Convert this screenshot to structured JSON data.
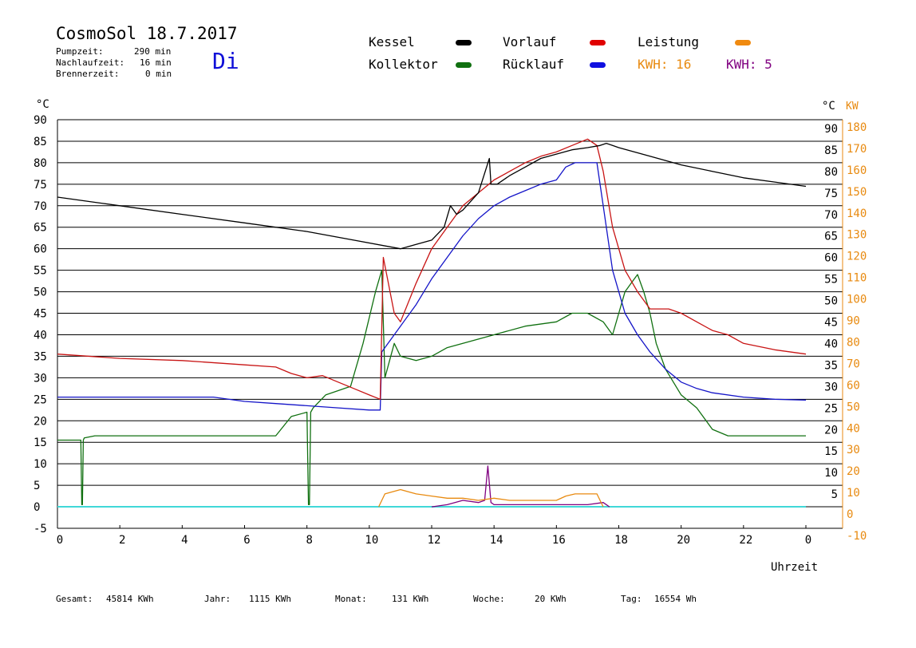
{
  "header": {
    "title": "CosmoSol 18.7.2017",
    "day": "Di",
    "pump_label": "Pumpzeit:",
    "pump_value": "290 min",
    "nachlauf_label": "Nachlaufzeit:",
    "nachlauf_value": "16 min",
    "brenner_label": "Brennerzeit:",
    "brenner_value": "0 min"
  },
  "legend": {
    "kessel": "Kessel",
    "kollektor": "Kollektor",
    "vorlauf": "Vorlauf",
    "ruecklauf": "Rücklauf",
    "leistung": "Leistung",
    "kwh1": "KWH: 16",
    "kwh2": "KWH: 5"
  },
  "colors": {
    "kessel": "#000000",
    "kollektor": "#107010",
    "vorlauf": "#c81414",
    "ruecklauf": "#1414c8",
    "leistung": "#e88a10",
    "kwh2": "#800080",
    "baseline": "#40d8d8"
  },
  "footer": {
    "gesamt_label": "Gesamt:",
    "gesamt_value": "45814 KWh",
    "jahr_label": "Jahr:",
    "jahr_value": "1115 KWh",
    "monat_label": "Monat:",
    "monat_value": "131 KWh",
    "woche_label": "Woche:",
    "woche_value": "20 KWh",
    "tag_label": "Tag:",
    "tag_value": "16554 Wh"
  },
  "chart_data": {
    "type": "line",
    "xlabel": "Uhrzeit",
    "ylabel_left": "°C",
    "ylabel_right": "°C",
    "ylabel_right2": "KW",
    "xlim": [
      0,
      24
    ],
    "ylim": [
      -5,
      90
    ],
    "x_ticks": [
      "0",
      "2",
      "4",
      "6",
      "8",
      "10",
      "12",
      "14",
      "16",
      "18",
      "20",
      "22",
      "0"
    ],
    "y_ticks_left": [
      "90",
      "85",
      "80",
      "75",
      "70",
      "65",
      "60",
      "55",
      "50",
      "45",
      "40",
      "35",
      "30",
      "25",
      "20",
      "15",
      "10",
      "5",
      "0",
      "-5"
    ],
    "y_ticks_right": [
      "90",
      "85",
      "80",
      "75",
      "70",
      "65",
      "60",
      "55",
      "50",
      "45",
      "40",
      "35",
      "30",
      "25",
      "20",
      "15",
      "10",
      "5"
    ],
    "y_ticks_kw": [
      "180",
      "170",
      "160",
      "150",
      "140",
      "130",
      "120",
      "110",
      "100",
      "90",
      "80",
      "70",
      "60",
      "50",
      "40",
      "30",
      "20",
      "10",
      "0",
      "-10"
    ],
    "grid": true,
    "series": [
      {
        "name": "Kessel",
        "color": "#000000",
        "x": [
          0,
          2,
          4,
          6,
          8,
          9.5,
          11,
          11.5,
          12,
          12.4,
          12.6,
          12.8,
          13.0,
          13.5,
          13.85,
          13.9,
          14.1,
          14.5,
          15,
          15.5,
          16,
          16.5,
          17,
          17.4,
          17.6,
          17.8,
          18,
          19,
          20,
          21,
          22,
          23,
          24
        ],
        "y": [
          72,
          70,
          68,
          66,
          64,
          62,
          60,
          61,
          62,
          65,
          70,
          68,
          69,
          73,
          81,
          75,
          75,
          77,
          79,
          81,
          82,
          83,
          83.5,
          84,
          84.5,
          84,
          83.5,
          81.5,
          79.5,
          78,
          76.5,
          75.5,
          74.5
        ]
      },
      {
        "name": "Vorlauf",
        "color": "#c81414",
        "x": [
          0,
          2,
          4,
          6,
          7,
          7.5,
          8,
          8.5,
          9,
          9.5,
          10,
          10.35,
          10.45,
          10.8,
          11,
          11.5,
          12,
          12.5,
          13,
          13.5,
          14,
          14.5,
          15,
          15.5,
          16,
          16.5,
          17,
          17.3,
          17.5,
          17.8,
          18.2,
          18.6,
          19,
          19.3,
          19.6,
          20,
          20.5,
          21,
          21.5,
          22,
          23,
          24
        ],
        "y": [
          35.5,
          34.5,
          34,
          33,
          32.5,
          31,
          30,
          30.5,
          29,
          27.5,
          26,
          25,
          58,
          45,
          43,
          52,
          60,
          65,
          70,
          73,
          76,
          78,
          80,
          81.5,
          82.5,
          84,
          85.5,
          84,
          78,
          65,
          55,
          50,
          46,
          46,
          46,
          45,
          43,
          41,
          40,
          38,
          36.5,
          35.5
        ]
      },
      {
        "name": "Rücklauf",
        "color": "#1414c8",
        "x": [
          0,
          2,
          4,
          5,
          6,
          7,
          8,
          9,
          10,
          10.35,
          10.4,
          11,
          11.5,
          12,
          12.5,
          13,
          13.5,
          14,
          14.5,
          15,
          15.5,
          16,
          16.3,
          16.6,
          17,
          17.3,
          17.5,
          17.8,
          18.2,
          18.6,
          19,
          19.5,
          20,
          20.5,
          21,
          22,
          23,
          24
        ],
        "y": [
          25.5,
          25.5,
          25.5,
          25.5,
          24.5,
          24,
          23.5,
          23,
          22.5,
          22.5,
          36,
          42,
          47,
          53,
          58,
          63,
          67,
          70,
          72,
          73.5,
          75,
          76,
          79,
          80,
          80,
          80,
          70,
          55,
          45,
          40,
          36,
          32,
          29,
          27.5,
          26.5,
          25.5,
          25,
          24.8
        ]
      },
      {
        "name": "Kollektor",
        "color": "#107010",
        "x": [
          0,
          0.75,
          0.78,
          0.8,
          0.83,
          0.86,
          1.2,
          2,
          4,
          6,
          6.5,
          7,
          7.5,
          8.0,
          8.05,
          8.08,
          8.12,
          8.2,
          8.6,
          9,
          9.4,
          9.8,
          10.2,
          10.4,
          10.5,
          10.8,
          11,
          11.5,
          12,
          12.5,
          13,
          14,
          15,
          16,
          16.5,
          17,
          17.5,
          17.8,
          18,
          18.2,
          18.4,
          18.6,
          18.8,
          19,
          19.2,
          19.5,
          20,
          20.5,
          21,
          21.5,
          22,
          23,
          24
        ],
        "y": [
          15.5,
          15.5,
          0.5,
          0.5,
          15.5,
          16,
          16.5,
          16.5,
          16.5,
          16.5,
          16.5,
          16.5,
          21,
          22,
          0.5,
          0.5,
          22,
          23,
          26,
          27,
          28,
          38,
          50,
          55,
          30,
          38,
          35,
          34,
          35,
          37,
          38,
          40,
          42,
          43,
          45,
          45,
          43,
          40,
          45,
          50,
          52,
          54,
          50,
          45,
          38,
          32,
          26,
          23,
          18,
          16.5,
          16.5,
          16.5,
          16.5
        ]
      },
      {
        "name": "Leistung",
        "color": "#e88a10",
        "x": [
          10.3,
          10.5,
          11,
          11.5,
          12,
          12.5,
          13,
          13.5,
          14,
          14.5,
          15,
          15.5,
          16,
          16.3,
          16.6,
          17,
          17.3,
          17.5
        ],
        "y": [
          0,
          3,
          4,
          3,
          2.5,
          2,
          2,
          1.5,
          2,
          1.5,
          1.5,
          1.5,
          1.5,
          2.5,
          3,
          3,
          3,
          0
        ]
      },
      {
        "name": "KWH",
        "color": "#800080",
        "x": [
          12,
          12.5,
          13,
          13.5,
          13.7,
          13.8,
          13.9,
          14,
          15,
          16,
          16.5,
          17,
          17.5,
          17.7
        ],
        "y": [
          0,
          0.5,
          1.5,
          1,
          1.5,
          9.5,
          1,
          0.5,
          0.5,
          0.5,
          0.5,
          0.5,
          1,
          0
        ]
      }
    ]
  }
}
